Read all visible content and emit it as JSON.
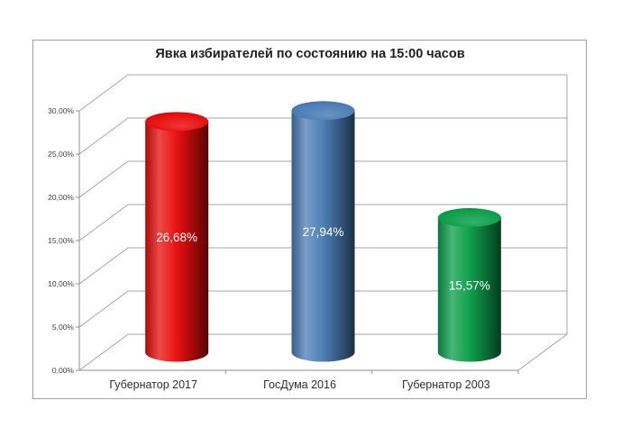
{
  "title": "Явка избирателей по состоянию на 15:00 часов",
  "chart_data": {
    "type": "bar",
    "subtype": "3d-cylinder",
    "title": "Явка избирателей по состоянию на 15:00 часов",
    "categories": [
      "Губернатор 2017",
      "ГосДума 2016",
      "Губернатор 2003"
    ],
    "values": [
      26.68,
      27.94,
      15.57
    ],
    "data_labels": [
      "26,68%",
      "27,94%",
      "15,57%"
    ],
    "series_colors": [
      "#e80c0c",
      "#4a7cb5",
      "#0b9e4a"
    ],
    "xlabel": "",
    "ylabel": "",
    "ylim": [
      0,
      30
    ],
    "ytick_step": 5,
    "ytick_labels": [
      "0,00%",
      "5,00%",
      "10,00%",
      "15,00%",
      "20,00%",
      "25,00%",
      "30,00%"
    ],
    "grid": true,
    "legend": "none",
    "gridline_color": "#a6a6a6",
    "axis_color": "#8f8f8f",
    "label_text_color": "#ffffff",
    "frame_color": "#a1a1a1"
  }
}
